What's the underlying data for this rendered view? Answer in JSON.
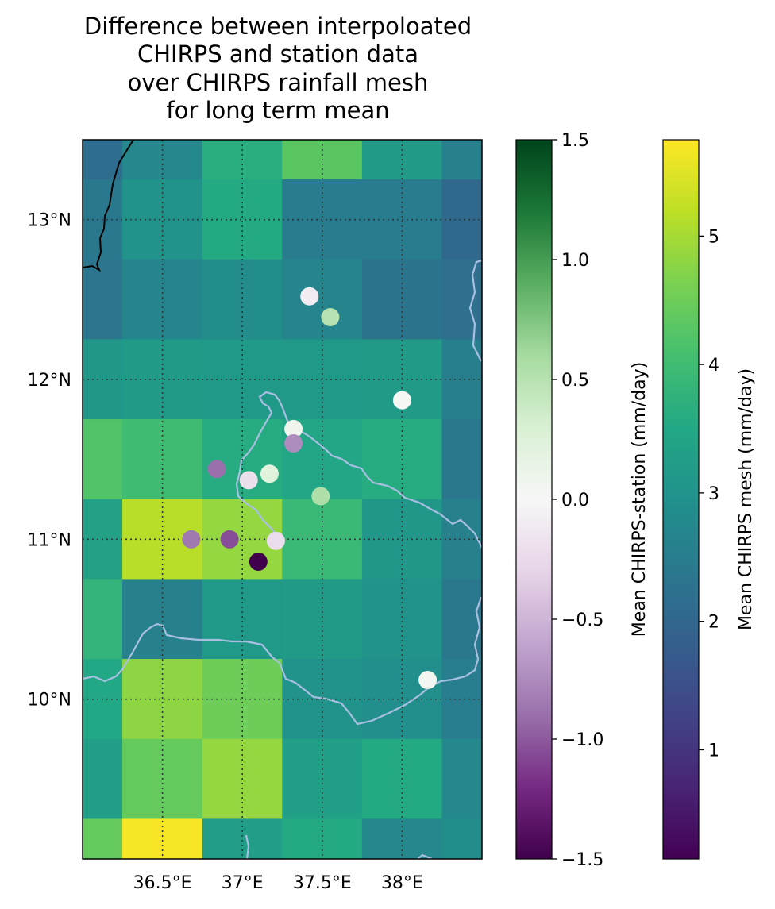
{
  "title_lines": [
    "Difference between interpoloated",
    "CHIRPS and station data",
    "over CHIRPS rainfall mesh",
    "for long term mean"
  ],
  "chart_data": {
    "type": "heatmap",
    "title": "Difference between interpoloated CHIRPS and station data over CHIRPS rainfall mesh for long term mean",
    "map_extent": {
      "lon": [
        36.0,
        38.5
      ],
      "lat": [
        9.0,
        13.5
      ]
    },
    "grid": true,
    "grid_style": "dotted",
    "x_ticks": [
      36.5,
      37.0,
      37.5,
      38.0
    ],
    "x_tick_labels": [
      "36.5°E",
      "37°E",
      "37.5°E",
      "38°E"
    ],
    "y_ticks": [
      10,
      11,
      12,
      13
    ],
    "y_tick_labels": [
      "10°N",
      "11°N",
      "12°N",
      "13°N"
    ],
    "mesh": {
      "name": "Mean CHIRPS mesh",
      "colormap": "viridis",
      "vmin": 0.15,
      "vmax": 5.75,
      "cell_size_deg": [
        0.25,
        0.5
      ],
      "lon_edges": [
        36.0,
        36.25,
        36.75,
        37.25,
        37.75,
        38.25,
        38.5
      ],
      "lat_edges": [
        13.5,
        13.25,
        12.75,
        12.25,
        11.75,
        11.25,
        10.75,
        10.25,
        9.75,
        9.25,
        9.0
      ],
      "values_by_row_north_to_south": [
        [
          2.15,
          2.75,
          3.65,
          4.3,
          3.2,
          2.6
        ],
        [
          2.4,
          3.0,
          3.55,
          2.45,
          2.45,
          2.05
        ],
        [
          2.35,
          2.65,
          2.85,
          2.65,
          2.3,
          2.2
        ],
        [
          3.1,
          3.2,
          3.15,
          3.15,
          3.2,
          2.55
        ],
        [
          4.2,
          4.0,
          3.6,
          3.45,
          3.6,
          2.4
        ],
        [
          3.35,
          5.15,
          4.85,
          3.9,
          3.1,
          2.6
        ],
        [
          3.8,
          2.6,
          3.15,
          3.2,
          3.0,
          2.4
        ],
        [
          3.5,
          4.8,
          4.5,
          3.0,
          2.9,
          2.5
        ],
        [
          3.3,
          4.4,
          4.85,
          3.3,
          3.55,
          2.75
        ],
        [
          4.4,
          5.7,
          3.25,
          3.55,
          2.75,
          2.85
        ]
      ]
    },
    "stations": {
      "name": "Mean CHIRPS-station",
      "colormap": "PRGn",
      "vmin": -1.5,
      "vmax": 1.5,
      "points": [
        {
          "lon": 37.42,
          "lat": 12.52,
          "value": -0.1
        },
        {
          "lon": 37.55,
          "lat": 12.39,
          "value": 0.5
        },
        {
          "lon": 38.0,
          "lat": 11.87,
          "value": 0.02
        },
        {
          "lon": 37.32,
          "lat": 11.69,
          "value": 0.08
        },
        {
          "lon": 37.32,
          "lat": 11.6,
          "value": -0.75
        },
        {
          "lon": 36.84,
          "lat": 11.44,
          "value": -0.9
        },
        {
          "lon": 37.17,
          "lat": 11.41,
          "value": 0.22
        },
        {
          "lon": 37.04,
          "lat": 11.37,
          "value": -0.2
        },
        {
          "lon": 37.49,
          "lat": 11.27,
          "value": 0.55
        },
        {
          "lon": 36.68,
          "lat": 11.0,
          "value": -0.85
        },
        {
          "lon": 36.92,
          "lat": 11.0,
          "value": -1.05
        },
        {
          "lon": 37.21,
          "lat": 10.99,
          "value": -0.22
        },
        {
          "lon": 37.1,
          "lat": 10.86,
          "value": -1.5
        },
        {
          "lon": 38.16,
          "lat": 10.12,
          "value": 0.05
        }
      ]
    },
    "colorbars": [
      {
        "label": "Mean CHIRPS-station (mm/day)",
        "colormap": "PRGn",
        "ticks": [
          -1.5,
          -1.0,
          -0.5,
          0.0,
          0.5,
          1.0,
          1.5
        ],
        "tick_labels": [
          "−1.5",
          "−1.0",
          "−0.5",
          "0.0",
          "0.5",
          "1.0",
          "1.5"
        ]
      },
      {
        "label": "Mean CHIRPS mesh (mm/day)",
        "colormap": "viridis",
        "ticks": [
          1,
          2,
          3,
          4,
          5
        ],
        "tick_labels": [
          "1",
          "2",
          "3",
          "4",
          "5"
        ]
      }
    ],
    "colors": {
      "country_border": "#000000",
      "river_lines": "#a8bfe2",
      "gridlines": "#2f3a3a"
    }
  }
}
